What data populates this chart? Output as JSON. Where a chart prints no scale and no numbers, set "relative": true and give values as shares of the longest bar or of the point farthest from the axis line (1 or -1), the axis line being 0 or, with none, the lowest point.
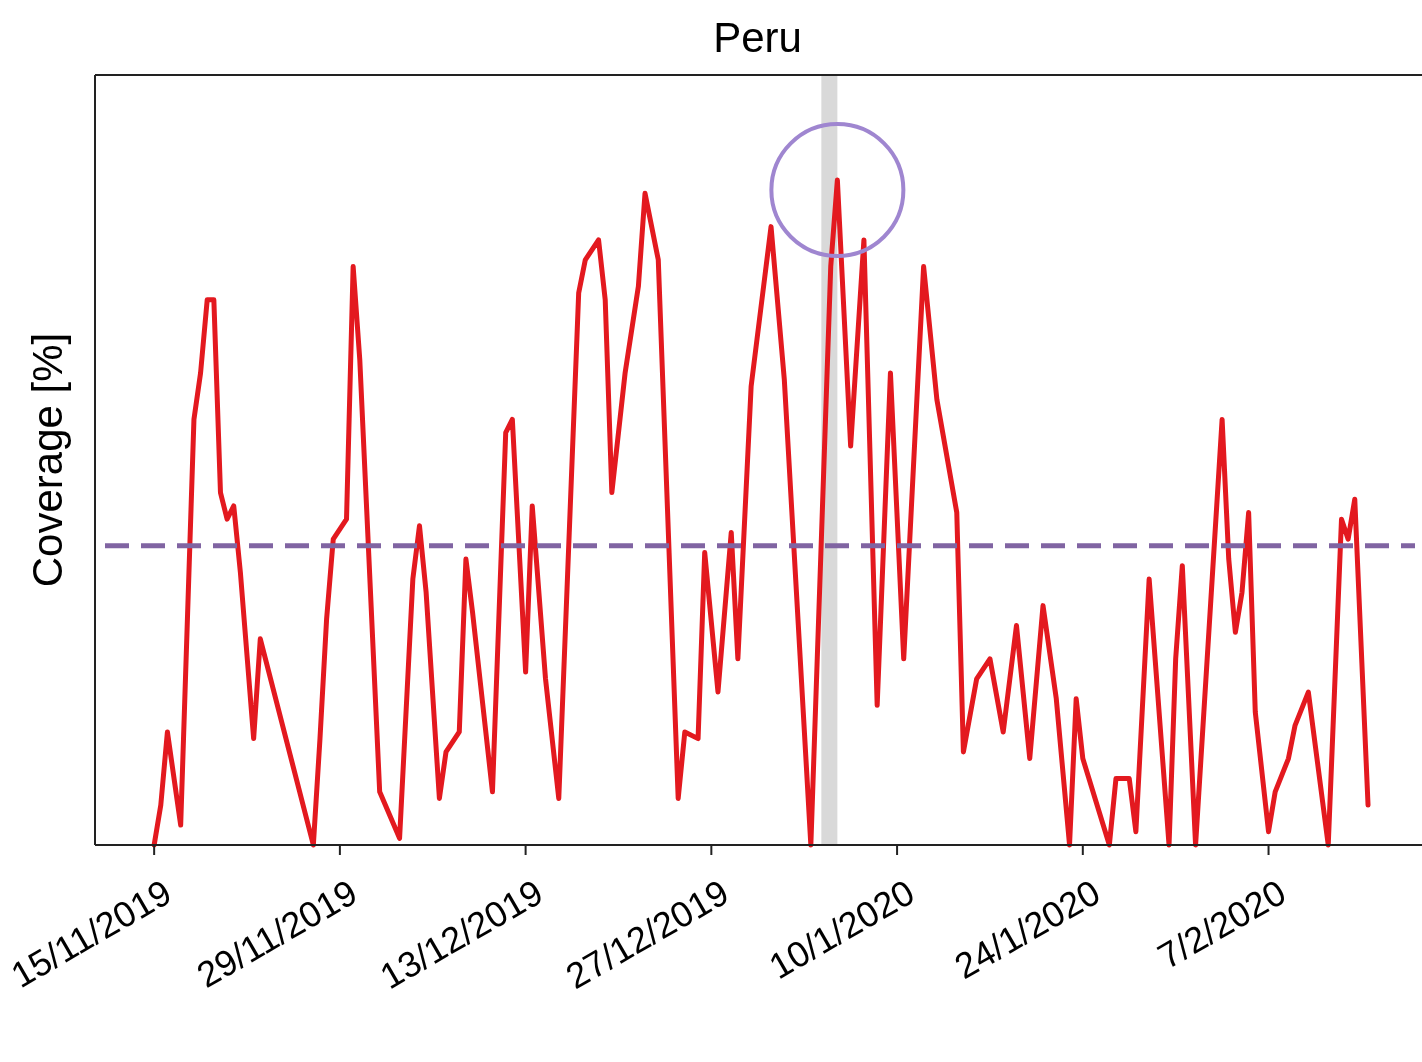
{
  "chart_data": {
    "type": "line",
    "title": "Peru",
    "ylabel": "Coverage [%]",
    "relative": true,
    "xlim": [
      "2019-11-10T13:00",
      "2020-02-18T10:00"
    ],
    "xticks": [
      {
        "value": "2019-11-15",
        "label": "15/11/2019"
      },
      {
        "value": "2019-11-29",
        "label": "29/11/2019"
      },
      {
        "value": "2019-12-13",
        "label": "13/12/2019"
      },
      {
        "value": "2019-12-27",
        "label": "27/12/2019"
      },
      {
        "value": "2020-01-10",
        "label": "10/1/2020"
      },
      {
        "value": "2020-01-24",
        "label": "24/1/2020"
      },
      {
        "value": "2020-02-07",
        "label": "7/2/2020"
      }
    ],
    "x": [
      "2019-11-15",
      "2019-11-15T12:00",
      "2019-11-16",
      "2019-11-17",
      "2019-11-18",
      "2019-11-18T12:00",
      "2019-11-19",
      "2019-11-19T12:00",
      "2019-11-20",
      "2019-11-20T12:00",
      "2019-11-21",
      "2019-11-21T12:00",
      "2019-11-22T12:00",
      "2019-11-23",
      "2019-11-27",
      "2019-11-27T12:00",
      "2019-11-28",
      "2019-11-28T12:00",
      "2019-11-29T12:00",
      "2019-11-30",
      "2019-11-30T12:00",
      "2019-12-02",
      "2019-12-03T12:00",
      "2019-12-04T12:00",
      "2019-12-05",
      "2019-12-05T12:00",
      "2019-12-06T12:00",
      "2019-12-07",
      "2019-12-08",
      "2019-12-08T12:00",
      "2019-12-09",
      "2019-12-10T12:00",
      "2019-12-11T12:00",
      "2019-12-12",
      "2019-12-13",
      "2019-12-13T12:00",
      "2019-12-14T12:00",
      "2019-12-15T12:00",
      "2019-12-17",
      "2019-12-17T12:00",
      "2019-12-18T12:00",
      "2019-12-19",
      "2019-12-19T12:00",
      "2019-12-20T12:00",
      "2019-12-21T12:00",
      "2019-12-22",
      "2019-12-23",
      "2019-12-24T12:00",
      "2019-12-25",
      "2019-12-26",
      "2019-12-26T12:00",
      "2019-12-27T12:00",
      "2019-12-28T12:00",
      "2019-12-29",
      "2019-12-30",
      "2019-12-31T12:00",
      "2020-01-01T12:00",
      "2020-01-03T12:00",
      "2020-01-05",
      "2020-01-05T12:00",
      "2020-01-06T12:00",
      "2020-01-07T12:00",
      "2020-01-08T12:00",
      "2020-01-09T12:00",
      "2020-01-10T12:00",
      "2020-01-12",
      "2020-01-13",
      "2020-01-14T12:00",
      "2020-01-15",
      "2020-01-16",
      "2020-01-17",
      "2020-01-18",
      "2020-01-19",
      "2020-01-20",
      "2020-01-21",
      "2020-01-22",
      "2020-01-23",
      "2020-01-23T12:00",
      "2020-01-24",
      "2020-01-26",
      "2020-01-26T12:00",
      "2020-01-27T12:00",
      "2020-01-28",
      "2020-01-29",
      "2020-01-30T12:00",
      "2020-01-31",
      "2020-01-31T12:00",
      "2020-02-01T12:00",
      "2020-02-03T12:00",
      "2020-02-04",
      "2020-02-04T12:00",
      "2020-02-05",
      "2020-02-05T12:00",
      "2020-02-06",
      "2020-02-07",
      "2020-02-07T12:00",
      "2020-02-08T12:00",
      "2020-02-09",
      "2020-02-10",
      "2020-02-11T12:00",
      "2020-02-12T12:00",
      "2020-02-13",
      "2020-02-13T12:00",
      "2020-02-14T12:00"
    ],
    "series": [
      {
        "color": "#e3191f",
        "values": [
          0,
          0.06,
          0.17,
          0.03,
          0.64,
          0.71,
          0.82,
          0.82,
          0.53,
          0.49,
          0.51,
          0.41,
          0.16,
          0.31,
          0,
          0.16,
          0.34,
          0.46,
          0.49,
          0.87,
          0.73,
          0.08,
          0.01,
          0.4,
          0.48,
          0.38,
          0.07,
          0.14,
          0.17,
          0.43,
          0.35,
          0.08,
          0.62,
          0.64,
          0.26,
          0.51,
          0.25,
          0.07,
          0.83,
          0.88,
          0.91,
          0.82,
          0.53,
          0.71,
          0.84,
          0.98,
          0.88,
          0.07,
          0.17,
          0.16,
          0.44,
          0.23,
          0.47,
          0.28,
          0.69,
          0.93,
          0.7,
          0,
          0.87,
          1,
          0.6,
          0.91,
          0.21,
          0.71,
          0.28,
          0.87,
          0.67,
          0.5,
          0.14,
          0.25,
          0.28,
          0.17,
          0.33,
          0.13,
          0.36,
          0.22,
          0,
          0.22,
          0.13,
          0,
          0.1,
          0.1,
          0.02,
          0.4,
          0,
          0.28,
          0.42,
          0,
          0.64,
          0.43,
          0.32,
          0.38,
          0.5,
          0.2,
          0.02,
          0.08,
          0.13,
          0.18,
          0.23,
          0,
          0.49,
          0.46,
          0.52,
          0.06
        ]
      }
    ],
    "ref_lines": [
      {
        "axis": "y",
        "value": 0.45,
        "color": "#8064a2",
        "line_style": "dashed"
      }
    ],
    "bands": [
      {
        "axis": "x",
        "from": "2020-01-04T07:00",
        "to": "2020-01-05T12:00",
        "color": "#d9d9d9"
      }
    ],
    "grid": false,
    "marker": "none",
    "line_style": "solid"
  }
}
